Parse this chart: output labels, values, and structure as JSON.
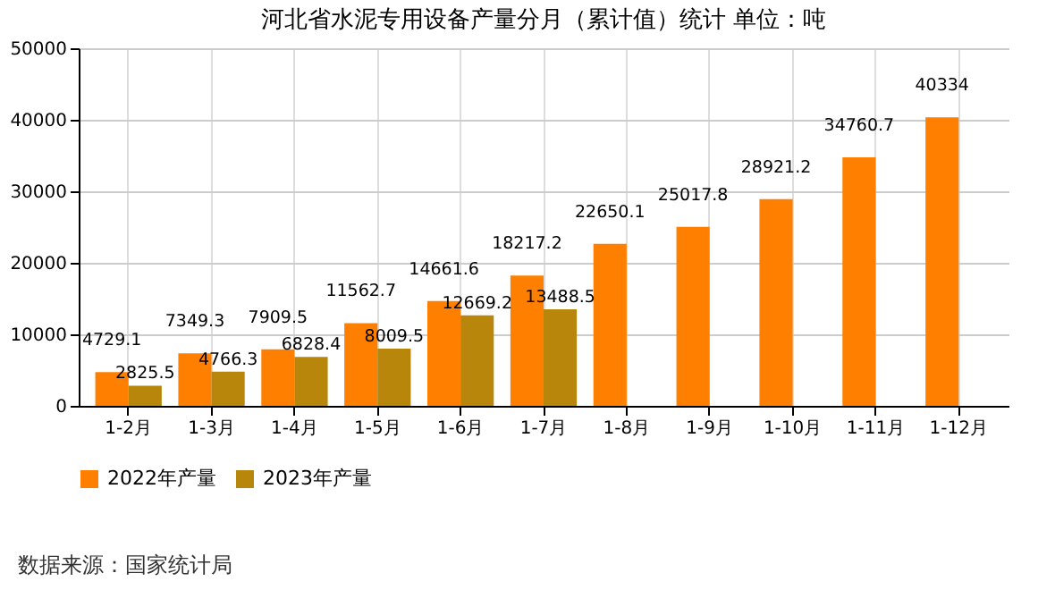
{
  "chart_data": {
    "type": "bar",
    "title": "河北省水泥专用设备产量分月（累计值）统计 单位：吨",
    "categories": [
      "1-2月",
      "1-3月",
      "1-4月",
      "1-5月",
      "1-6月",
      "1-7月",
      "1-8月",
      "1-9月",
      "1-10月",
      "1-11月",
      "1-12月"
    ],
    "series": [
      {
        "name": "2022年产量",
        "color": "#ff8000",
        "values": [
          4729.1,
          7349.3,
          7909.5,
          11562.7,
          14661.6,
          18217.2,
          22650.1,
          25017.8,
          28921.2,
          34760.7,
          40334
        ]
      },
      {
        "name": "2023年产量",
        "color": "#b8860b",
        "values": [
          2825.5,
          4766.3,
          6828.4,
          8009.5,
          12669.2,
          13488.5,
          null,
          null,
          null,
          null,
          null
        ]
      }
    ],
    "ylim": [
      0,
      50000
    ],
    "yticks": [
      0,
      10000,
      20000,
      30000,
      40000,
      50000
    ],
    "grid": true,
    "legend": "bottom",
    "data_labels": true,
    "annotations": [
      "数据来源：国家统计局"
    ]
  }
}
